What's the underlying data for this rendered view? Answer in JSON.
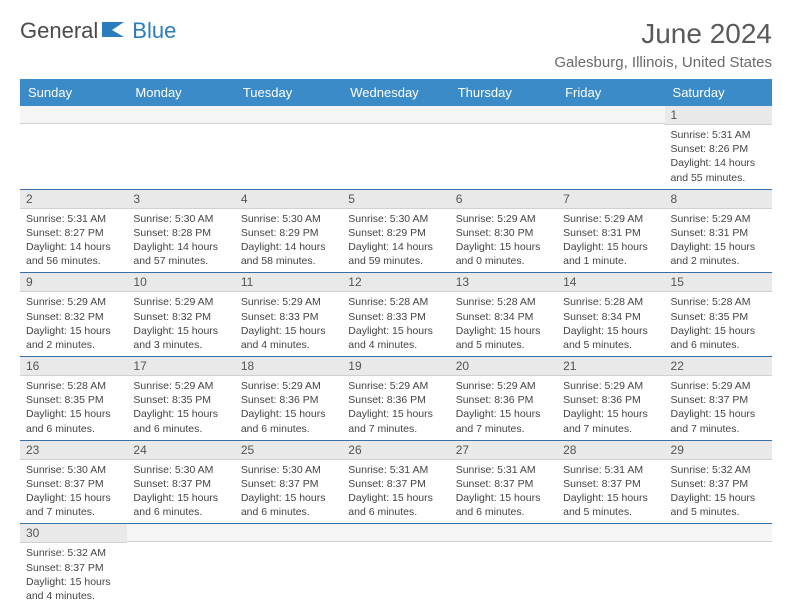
{
  "logo": {
    "part1": "General",
    "part2": "Blue"
  },
  "title": "June 2024",
  "location": "Galesburg, Illinois, United States",
  "colors": {
    "header_bg": "#3b8bc9",
    "header_text": "#ffffff",
    "row_border": "#3b6fa8",
    "daynum_bg": "#e9e9e9",
    "logo_blue": "#2b7bbf",
    "logo_gray": "#4a4a4a"
  },
  "day_headers": [
    "Sunday",
    "Monday",
    "Tuesday",
    "Wednesday",
    "Thursday",
    "Friday",
    "Saturday"
  ],
  "weeks": [
    [
      null,
      null,
      null,
      null,
      null,
      null,
      {
        "n": "1",
        "sr": "5:31 AM",
        "ss": "8:26 PM",
        "dl": "14 hours and 55 minutes."
      }
    ],
    [
      {
        "n": "2",
        "sr": "5:31 AM",
        "ss": "8:27 PM",
        "dl": "14 hours and 56 minutes."
      },
      {
        "n": "3",
        "sr": "5:30 AM",
        "ss": "8:28 PM",
        "dl": "14 hours and 57 minutes."
      },
      {
        "n": "4",
        "sr": "5:30 AM",
        "ss": "8:29 PM",
        "dl": "14 hours and 58 minutes."
      },
      {
        "n": "5",
        "sr": "5:30 AM",
        "ss": "8:29 PM",
        "dl": "14 hours and 59 minutes."
      },
      {
        "n": "6",
        "sr": "5:29 AM",
        "ss": "8:30 PM",
        "dl": "15 hours and 0 minutes."
      },
      {
        "n": "7",
        "sr": "5:29 AM",
        "ss": "8:31 PM",
        "dl": "15 hours and 1 minute."
      },
      {
        "n": "8",
        "sr": "5:29 AM",
        "ss": "8:31 PM",
        "dl": "15 hours and 2 minutes."
      }
    ],
    [
      {
        "n": "9",
        "sr": "5:29 AM",
        "ss": "8:32 PM",
        "dl": "15 hours and 2 minutes."
      },
      {
        "n": "10",
        "sr": "5:29 AM",
        "ss": "8:32 PM",
        "dl": "15 hours and 3 minutes."
      },
      {
        "n": "11",
        "sr": "5:29 AM",
        "ss": "8:33 PM",
        "dl": "15 hours and 4 minutes."
      },
      {
        "n": "12",
        "sr": "5:28 AM",
        "ss": "8:33 PM",
        "dl": "15 hours and 4 minutes."
      },
      {
        "n": "13",
        "sr": "5:28 AM",
        "ss": "8:34 PM",
        "dl": "15 hours and 5 minutes."
      },
      {
        "n": "14",
        "sr": "5:28 AM",
        "ss": "8:34 PM",
        "dl": "15 hours and 5 minutes."
      },
      {
        "n": "15",
        "sr": "5:28 AM",
        "ss": "8:35 PM",
        "dl": "15 hours and 6 minutes."
      }
    ],
    [
      {
        "n": "16",
        "sr": "5:28 AM",
        "ss": "8:35 PM",
        "dl": "15 hours and 6 minutes."
      },
      {
        "n": "17",
        "sr": "5:29 AM",
        "ss": "8:35 PM",
        "dl": "15 hours and 6 minutes."
      },
      {
        "n": "18",
        "sr": "5:29 AM",
        "ss": "8:36 PM",
        "dl": "15 hours and 6 minutes."
      },
      {
        "n": "19",
        "sr": "5:29 AM",
        "ss": "8:36 PM",
        "dl": "15 hours and 7 minutes."
      },
      {
        "n": "20",
        "sr": "5:29 AM",
        "ss": "8:36 PM",
        "dl": "15 hours and 7 minutes."
      },
      {
        "n": "21",
        "sr": "5:29 AM",
        "ss": "8:36 PM",
        "dl": "15 hours and 7 minutes."
      },
      {
        "n": "22",
        "sr": "5:29 AM",
        "ss": "8:37 PM",
        "dl": "15 hours and 7 minutes."
      }
    ],
    [
      {
        "n": "23",
        "sr": "5:30 AM",
        "ss": "8:37 PM",
        "dl": "15 hours and 7 minutes."
      },
      {
        "n": "24",
        "sr": "5:30 AM",
        "ss": "8:37 PM",
        "dl": "15 hours and 6 minutes."
      },
      {
        "n": "25",
        "sr": "5:30 AM",
        "ss": "8:37 PM",
        "dl": "15 hours and 6 minutes."
      },
      {
        "n": "26",
        "sr": "5:31 AM",
        "ss": "8:37 PM",
        "dl": "15 hours and 6 minutes."
      },
      {
        "n": "27",
        "sr": "5:31 AM",
        "ss": "8:37 PM",
        "dl": "15 hours and 6 minutes."
      },
      {
        "n": "28",
        "sr": "5:31 AM",
        "ss": "8:37 PM",
        "dl": "15 hours and 5 minutes."
      },
      {
        "n": "29",
        "sr": "5:32 AM",
        "ss": "8:37 PM",
        "dl": "15 hours and 5 minutes."
      }
    ],
    [
      {
        "n": "30",
        "sr": "5:32 AM",
        "ss": "8:37 PM",
        "dl": "15 hours and 4 minutes."
      },
      null,
      null,
      null,
      null,
      null,
      null
    ]
  ],
  "labels": {
    "sunrise": "Sunrise: ",
    "sunset": "Sunset: ",
    "daylight": "Daylight: "
  }
}
